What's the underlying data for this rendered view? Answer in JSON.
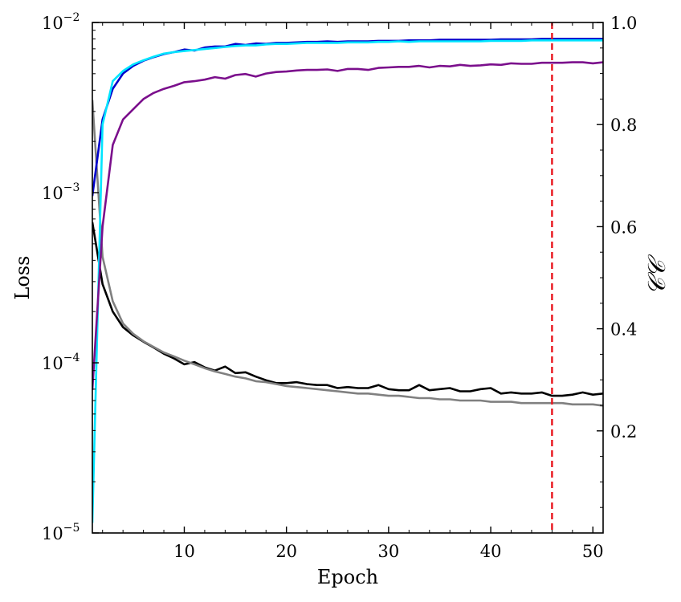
{
  "chart_data": {
    "type": "line",
    "xlabel": "Epoch",
    "ylabel_left": "Loss",
    "ylabel_right": "𝒞𝒞",
    "xlim": [
      1,
      51
    ],
    "ylim_left": [
      1e-05,
      0.01
    ],
    "yscale_left": "log",
    "ylim_right": [
      0.0,
      1.0
    ],
    "x_ticks": [
      10,
      20,
      30,
      40,
      50
    ],
    "y_ticks_left": [
      {
        "value": 1e-05,
        "mantissa": "10",
        "exponent": "−5"
      },
      {
        "value": 0.0001,
        "mantissa": "10",
        "exponent": "−4"
      },
      {
        "value": 0.001,
        "mantissa": "10",
        "exponent": "−3"
      },
      {
        "value": 0.01,
        "mantissa": "10",
        "exponent": "−2"
      }
    ],
    "y_ticks_right": [
      "0.2",
      "0.4",
      "0.6",
      "0.8",
      "1.0"
    ],
    "grid": false,
    "vline": {
      "x": 46,
      "color": "#e8141c",
      "style": "dashed"
    },
    "series": [
      {
        "axis": "left",
        "color": "#000000",
        "x": [
          1,
          2,
          3,
          4,
          5,
          6,
          7,
          8,
          9,
          10,
          11,
          12,
          13,
          14,
          15,
          16,
          17,
          18,
          19,
          20,
          21,
          22,
          23,
          24,
          25,
          26,
          27,
          28,
          29,
          30,
          31,
          32,
          33,
          34,
          35,
          36,
          37,
          38,
          39,
          40,
          41,
          42,
          43,
          44,
          45,
          46,
          47,
          48,
          49,
          50,
          51
        ],
        "y": [
          0.00067,
          0.00029,
          0.0002,
          0.000162,
          0.000145,
          0.000133,
          0.000123,
          0.000113,
          0.000106,
          9.8e-05,
          0.000101,
          9.4e-05,
          9e-05,
          9.5e-05,
          8.7e-05,
          8.8e-05,
          8.3e-05,
          7.9e-05,
          7.6e-05,
          7.6e-05,
          7.7e-05,
          7.5e-05,
          7.4e-05,
          7.4e-05,
          7.1e-05,
          7.2e-05,
          7.1e-05,
          7.1e-05,
          7.4e-05,
          7e-05,
          6.9e-05,
          6.9e-05,
          7.4e-05,
          6.9e-05,
          7e-05,
          7.1e-05,
          6.8e-05,
          6.8e-05,
          7e-05,
          7.1e-05,
          6.6e-05,
          6.7e-05,
          6.6e-05,
          6.6e-05,
          6.7e-05,
          6.4e-05,
          6.4e-05,
          6.5e-05,
          6.7e-05,
          6.5e-05,
          6.6e-05
        ]
      },
      {
        "axis": "left",
        "color": "#808080",
        "x": [
          1,
          2,
          3,
          4,
          5,
          6,
          7,
          8,
          9,
          10,
          11,
          12,
          13,
          14,
          15,
          16,
          17,
          18,
          19,
          20,
          21,
          22,
          23,
          24,
          25,
          26,
          27,
          28,
          29,
          30,
          31,
          32,
          33,
          34,
          35,
          36,
          37,
          38,
          39,
          40,
          41,
          42,
          43,
          44,
          45,
          46,
          47,
          48,
          49,
          50,
          51
        ],
        "y": [
          0.0035,
          0.00042,
          0.00023,
          0.00017,
          0.000148,
          0.000134,
          0.000124,
          0.000115,
          0.000109,
          0.000103,
          9.8e-05,
          9.3e-05,
          8.9e-05,
          8.6e-05,
          8.3e-05,
          8.1e-05,
          7.8e-05,
          7.7e-05,
          7.5e-05,
          7.3e-05,
          7.2e-05,
          7.1e-05,
          7e-05,
          6.9e-05,
          6.8e-05,
          6.7e-05,
          6.6e-05,
          6.6e-05,
          6.5e-05,
          6.4e-05,
          6.4e-05,
          6.3e-05,
          6.2e-05,
          6.2e-05,
          6.1e-05,
          6.1e-05,
          6e-05,
          6e-05,
          6e-05,
          5.9e-05,
          5.9e-05,
          5.9e-05,
          5.8e-05,
          5.8e-05,
          5.8e-05,
          5.8e-05,
          5.8e-05,
          5.7e-05,
          5.7e-05,
          5.7e-05,
          5.6e-05
        ]
      },
      {
        "axis": "right",
        "color": "#0000cc",
        "x": [
          1,
          2,
          3,
          4,
          5,
          6,
          7,
          8,
          9,
          10,
          11,
          12,
          13,
          14,
          15,
          16,
          17,
          18,
          19,
          20,
          21,
          22,
          23,
          24,
          25,
          26,
          27,
          28,
          29,
          30,
          31,
          32,
          33,
          34,
          35,
          36,
          37,
          38,
          39,
          40,
          41,
          42,
          43,
          44,
          45,
          46,
          47,
          48,
          49,
          50,
          51
        ],
        "y": [
          0.66,
          0.81,
          0.87,
          0.9,
          0.915,
          0.925,
          0.932,
          0.938,
          0.942,
          0.947,
          0.945,
          0.951,
          0.953,
          0.953,
          0.958,
          0.956,
          0.959,
          0.958,
          0.96,
          0.96,
          0.961,
          0.962,
          0.962,
          0.963,
          0.962,
          0.963,
          0.963,
          0.963,
          0.964,
          0.964,
          0.964,
          0.965,
          0.965,
          0.965,
          0.966,
          0.966,
          0.966,
          0.966,
          0.966,
          0.966,
          0.967,
          0.967,
          0.967,
          0.967,
          0.968,
          0.968,
          0.968,
          0.968,
          0.968,
          0.968,
          0.968
        ]
      },
      {
        "axis": "right",
        "color": "#00e5ff",
        "x": [
          1,
          2,
          3,
          4,
          5,
          6,
          7,
          8,
          9,
          10,
          11,
          12,
          13,
          14,
          15,
          16,
          17,
          18,
          19,
          20,
          21,
          22,
          23,
          24,
          25,
          26,
          27,
          28,
          29,
          30,
          31,
          32,
          33,
          34,
          35,
          36,
          37,
          38,
          39,
          40,
          41,
          42,
          43,
          44,
          45,
          46,
          47,
          48,
          49,
          50,
          51
        ],
        "y": [
          0.02,
          0.8,
          0.885,
          0.905,
          0.918,
          0.926,
          0.933,
          0.939,
          0.942,
          0.944,
          0.946,
          0.948,
          0.95,
          0.952,
          0.954,
          0.955,
          0.955,
          0.957,
          0.958,
          0.958,
          0.959,
          0.96,
          0.96,
          0.96,
          0.96,
          0.961,
          0.961,
          0.961,
          0.962,
          0.962,
          0.963,
          0.962,
          0.963,
          0.963,
          0.963,
          0.963,
          0.963,
          0.963,
          0.963,
          0.964,
          0.964,
          0.964,
          0.964,
          0.965,
          0.965,
          0.965,
          0.965,
          0.965,
          0.965,
          0.965,
          0.965
        ]
      },
      {
        "axis": "right",
        "color": "#7b0f8c",
        "x": [
          1,
          2,
          3,
          4,
          5,
          6,
          7,
          8,
          9,
          10,
          11,
          12,
          13,
          14,
          15,
          16,
          17,
          18,
          19,
          20,
          21,
          22,
          23,
          24,
          25,
          26,
          27,
          28,
          29,
          30,
          31,
          32,
          33,
          34,
          35,
          36,
          37,
          38,
          39,
          40,
          41,
          42,
          43,
          44,
          45,
          46,
          47,
          48,
          49,
          50,
          51
        ],
        "y": [
          0.28,
          0.6,
          0.76,
          0.81,
          0.83,
          0.85,
          0.862,
          0.87,
          0.876,
          0.883,
          0.885,
          0.888,
          0.893,
          0.89,
          0.897,
          0.899,
          0.894,
          0.9,
          0.903,
          0.904,
          0.906,
          0.907,
          0.907,
          0.908,
          0.905,
          0.909,
          0.909,
          0.907,
          0.911,
          0.912,
          0.913,
          0.913,
          0.915,
          0.912,
          0.915,
          0.914,
          0.917,
          0.915,
          0.916,
          0.918,
          0.917,
          0.92,
          0.919,
          0.919,
          0.921,
          0.921,
          0.921,
          0.922,
          0.922,
          0.92,
          0.922
        ]
      }
    ]
  }
}
